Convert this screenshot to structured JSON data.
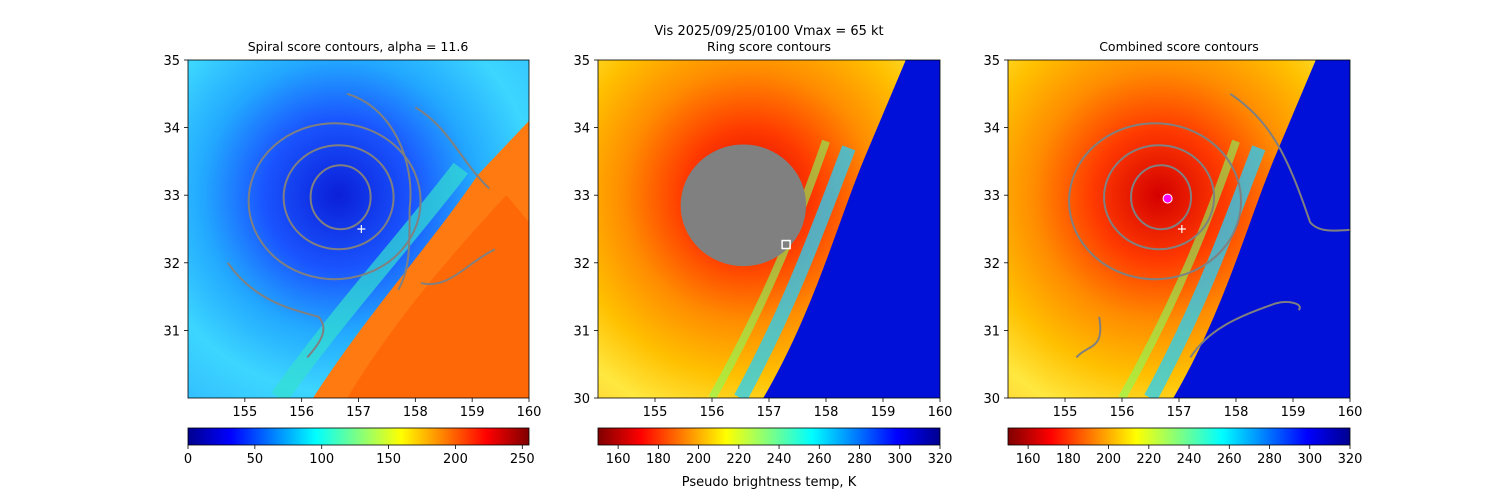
{
  "suptitle": "Vis  2025/09/25/0100    Vmax = 65 kt",
  "colorbar_label": "Pseudo brightness temp, K",
  "colormap": [
    "#7f0000",
    "#ff0000",
    "#ff8000",
    "#ffff00",
    "#80ff80",
    "#00ffff",
    "#0080ff",
    "#0000ff",
    "#00008f"
  ],
  "contour_color": "#808080",
  "chart_data": [
    {
      "type": "heatmap",
      "title": "Spiral score contours, alpha = 11.6",
      "xlim": [
        154.0,
        160.0
      ],
      "ylim": [
        30.0,
        35.0
      ],
      "xticks": [
        "155",
        "156",
        "157",
        "158",
        "159",
        "160"
      ],
      "yticks": [
        "31",
        "32",
        "33",
        "34",
        "35"
      ],
      "colormap_reversed": true,
      "colorbar": {
        "range": [
          0,
          255
        ],
        "ticks": [
          "0",
          "50",
          "100",
          "150",
          "200",
          "250"
        ]
      },
      "center_marker": {
        "symbol": "+",
        "x": 157.05,
        "y": 32.5,
        "color": "#ffffff"
      },
      "contour_lines": 6
    },
    {
      "type": "heatmap",
      "title": "Ring score contours",
      "xlim": [
        154.0,
        160.0
      ],
      "ylim": [
        30.0,
        35.0
      ],
      "xticks": [
        "155",
        "156",
        "157",
        "158",
        "159",
        "160"
      ],
      "yticks": [
        "30",
        "31",
        "32",
        "33",
        "34",
        "35"
      ],
      "colormap_reversed": false,
      "colorbar": {
        "range": [
          150,
          320
        ],
        "ticks": [
          "160",
          "180",
          "200",
          "220",
          "240",
          "260",
          "280",
          "300",
          "320"
        ]
      },
      "masked_disk": {
        "center_x": 156.55,
        "center_y": 32.85,
        "radius_deg": 1.0,
        "color": "#808080"
      },
      "square_marker": {
        "x": 157.3,
        "y": 32.27,
        "color": "#ffffff"
      }
    },
    {
      "type": "heatmap",
      "title": "Combined score contours",
      "xlim": [
        154.0,
        160.0
      ],
      "ylim": [
        30.0,
        35.0
      ],
      "xticks": [
        "155",
        "156",
        "157",
        "158",
        "159",
        "160"
      ],
      "yticks": [
        "30",
        "31",
        "32",
        "33",
        "34",
        "35"
      ],
      "colormap_reversed": false,
      "colorbar": {
        "range": [
          150,
          320
        ],
        "ticks": [
          "160",
          "180",
          "200",
          "220",
          "240",
          "260",
          "280",
          "300",
          "320"
        ]
      },
      "center_marker": {
        "symbol": "+",
        "x": 157.05,
        "y": 32.5,
        "color": "#ffffff"
      },
      "best_marker": {
        "x": 156.8,
        "y": 32.95,
        "color": "#ff00ff"
      },
      "contour_lines": 6
    }
  ]
}
